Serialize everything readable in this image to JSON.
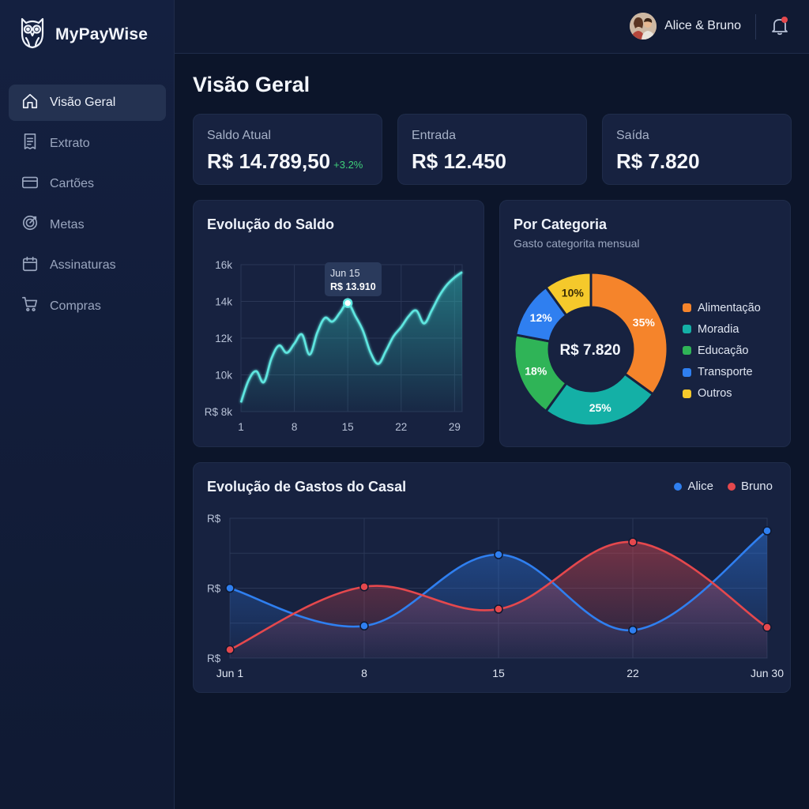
{
  "app": {
    "name": "MyPayWise"
  },
  "colors": {
    "accent": "#5ee6e0",
    "alice": "#2f7ff0",
    "bruno": "#e5484d",
    "positive": "#3fd07a"
  },
  "sidebar": {
    "items": [
      {
        "label": "Visão Geral",
        "icon": "home-icon",
        "active": true
      },
      {
        "label": "Extrato",
        "icon": "receipt-icon"
      },
      {
        "label": "Cartões",
        "icon": "credit-card-icon"
      },
      {
        "label": "Metas",
        "icon": "target-icon"
      },
      {
        "label": "Assinaturas",
        "icon": "calendar-icon"
      },
      {
        "label": "Compras",
        "icon": "cart-icon"
      }
    ]
  },
  "header": {
    "user_name": "Alice & Bruno"
  },
  "page": {
    "title": "Visão Geral"
  },
  "stats": {
    "saldo": {
      "label": "Saldo Atual",
      "value": "R$ 14.789,50",
      "delta": "+3.2%"
    },
    "entrada": {
      "label": "Entrada",
      "value": "R$ 12.450"
    },
    "saida": {
      "label": "Saída",
      "value": "R$ 7.820"
    }
  },
  "balance_card": {
    "title": "Evolução do Saldo",
    "tooltip_date": "Jun 15",
    "tooltip_value": "R$ 13.910"
  },
  "category_card": {
    "title": "Por Categoria",
    "subtitle": "Gasto categorita mensual",
    "center_value": "R$ 7.820"
  },
  "couple_card": {
    "title": "Evolução de Gastos do Casal"
  },
  "chart_data": [
    {
      "type": "area",
      "title": "Evolução do Saldo",
      "x": [
        1,
        2,
        3,
        4,
        5,
        6,
        7,
        8,
        9,
        10,
        11,
        12,
        13,
        14,
        15,
        16,
        17,
        18,
        19,
        20,
        21,
        22,
        23,
        24,
        25,
        26,
        27,
        28,
        29,
        30
      ],
      "values": [
        8500,
        9700,
        10200,
        9600,
        10900,
        11600,
        11200,
        11700,
        12200,
        11100,
        12300,
        13100,
        12900,
        13400,
        13910,
        13200,
        12400,
        11200,
        10600,
        11300,
        12100,
        12600,
        13200,
        13500,
        12800,
        13500,
        14300,
        14900,
        15300,
        15600
      ],
      "xticks": [
        "1",
        "8",
        "15",
        "22",
        "29"
      ],
      "yticks": [
        "R$ 8k",
        "10k",
        "12k",
        "14k",
        "16k"
      ],
      "ylim": [
        8000,
        16000
      ],
      "grid": true
    },
    {
      "type": "pie",
      "title": "Por Categoria",
      "slices": [
        {
          "name": "Alimentação",
          "value": 35,
          "label": "35%",
          "color": "#f5842b"
        },
        {
          "name": "Moradia",
          "value": 25,
          "label": "25%",
          "color": "#14b0a6"
        },
        {
          "name": "Educação",
          "value": 18,
          "label": "18%",
          "color": "#2fb457"
        },
        {
          "name": "Transporte",
          "value": 12,
          "label": "12%",
          "color": "#2f7ff0"
        },
        {
          "name": "Outros",
          "value": 10,
          "label": "10%",
          "color": "#f5c92b"
        }
      ]
    },
    {
      "type": "area",
      "title": "Evolução de Gastos do Casal",
      "x": [
        "Jun 1",
        "8",
        "15",
        "22",
        "Jun 30"
      ],
      "yticks": [
        "R$",
        "R$",
        "R$"
      ],
      "ylim": [
        0,
        100
      ],
      "series": [
        {
          "name": "Alice",
          "color": "#2f7ff0",
          "values": [
            50,
            23,
            74,
            20,
            91
          ]
        },
        {
          "name": "Bruno",
          "color": "#e5484d",
          "values": [
            6,
            51,
            35,
            83,
            22
          ]
        }
      ],
      "legend": "top-right",
      "grid": true
    }
  ]
}
